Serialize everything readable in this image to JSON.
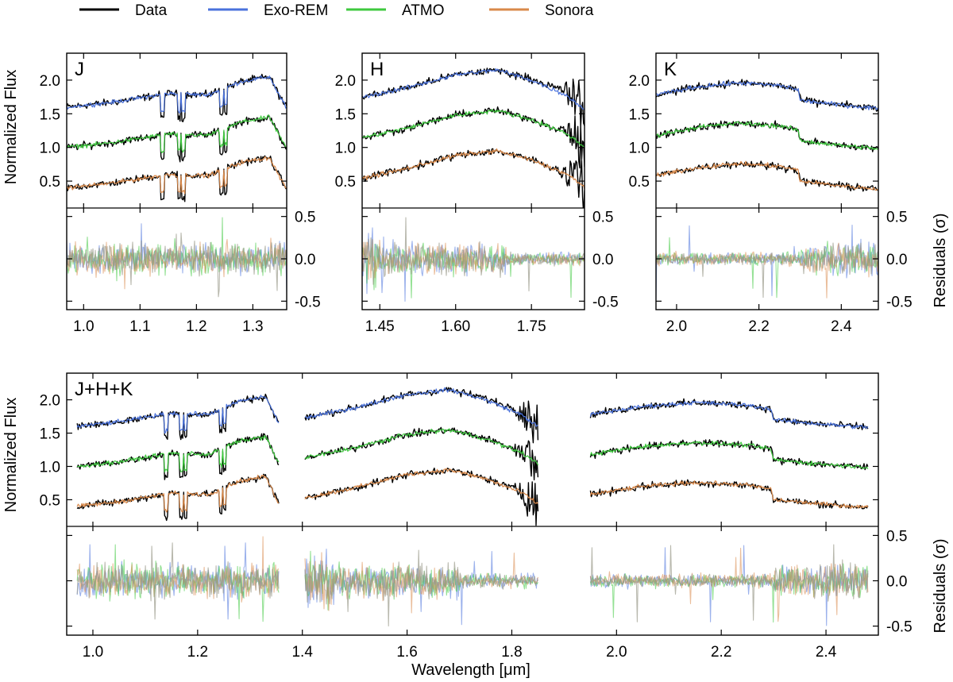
{
  "legend": [
    {
      "label": "Data",
      "color": "#000000"
    },
    {
      "label": "Exo-REM",
      "color": "#4a72dc"
    },
    {
      "label": "ATMO",
      "color": "#3ec93e"
    },
    {
      "label": "Sonora",
      "color": "#d9894a"
    }
  ],
  "axes": {
    "flux_label": "Normalized Flux",
    "residual_label": "Residuals (σ)",
    "x_label": "Wavelength [μm]"
  },
  "chart_data": [
    {
      "type": "line",
      "panel": "J",
      "xlim": [
        0.97,
        1.36
      ],
      "x_ticks": [
        "1.0",
        "1.1",
        "1.2",
        "1.3"
      ],
      "flux_ylim": [
        0.1,
        2.4
      ],
      "flux_ticks": [
        "0.5",
        "1.0",
        "1.5",
        "2.0"
      ],
      "residual_ylim": [
        -0.6,
        0.6
      ],
      "residual_ticks": [
        "-0.5",
        "0.0",
        "0.5"
      ],
      "segments": [
        [
          0.97,
          1.36
        ]
      ],
      "series": [
        {
          "name": "Data",
          "color": "#000000",
          "offset": 1.2,
          "shape": [
            [
              0.97,
              0.4
            ],
            [
              1.05,
              0.47
            ],
            [
              1.15,
              0.6
            ],
            [
              1.22,
              0.58
            ],
            [
              1.28,
              0.78
            ],
            [
              1.33,
              0.85
            ],
            [
              1.345,
              0.6
            ],
            [
              1.36,
              0.38
            ]
          ]
        },
        {
          "name": "Exo-REM",
          "color": "#4a72dc",
          "offset": 1.2
        },
        {
          "name": "Data",
          "color": "#000000",
          "offset": 0.6
        },
        {
          "name": "ATMO",
          "color": "#3ec93e",
          "offset": 0.6
        },
        {
          "name": "Data",
          "color": "#000000",
          "offset": 0.0
        },
        {
          "name": "Sonora",
          "color": "#d9894a",
          "offset": 0.0
        }
      ]
    },
    {
      "type": "line",
      "panel": "H",
      "xlim": [
        1.415,
        1.855
      ],
      "x_ticks": [
        "1.45",
        "1.60",
        "1.75"
      ],
      "flux_ylim": [
        0.1,
        2.4
      ],
      "flux_ticks": [
        "0.5",
        "1.0",
        "1.5",
        "2.0"
      ],
      "residual_ylim": [
        -0.6,
        0.6
      ],
      "residual_ticks": [
        "-0.5",
        "0.0",
        "0.5"
      ],
      "segments": [
        [
          1.415,
          1.855
        ]
      ],
      "series": [
        {
          "name": "Data",
          "color": "#000000",
          "offset": 1.2,
          "shape": [
            [
              1.415,
              0.55
            ],
            [
              1.5,
              0.68
            ],
            [
              1.6,
              0.88
            ],
            [
              1.68,
              0.95
            ],
            [
              1.75,
              0.82
            ],
            [
              1.82,
              0.62
            ],
            [
              1.855,
              0.4
            ]
          ]
        },
        {
          "name": "Exo-REM",
          "color": "#4a72dc",
          "offset": 1.2
        },
        {
          "name": "Data",
          "color": "#000000",
          "offset": 0.6
        },
        {
          "name": "ATMO",
          "color": "#3ec93e",
          "offset": 0.6
        },
        {
          "name": "Data",
          "color": "#000000",
          "offset": 0.0
        },
        {
          "name": "Sonora",
          "color": "#d9894a",
          "offset": 0.0
        }
      ]
    },
    {
      "type": "line",
      "panel": "K",
      "xlim": [
        1.95,
        2.49
      ],
      "x_ticks": [
        "2.0",
        "2.2",
        "2.4"
      ],
      "flux_ylim": [
        0.1,
        2.4
      ],
      "flux_ticks": [
        "0.5",
        "1.0",
        "1.5",
        "2.0"
      ],
      "residual_ylim": [
        -0.6,
        0.6
      ],
      "residual_ticks": [
        "-0.5",
        "0.0",
        "0.5"
      ],
      "segments": [
        [
          1.95,
          2.49
        ]
      ],
      "series": [
        {
          "name": "Data",
          "color": "#000000",
          "offset": 1.2,
          "shape": [
            [
              1.95,
              0.58
            ],
            [
              2.05,
              0.7
            ],
            [
              2.15,
              0.76
            ],
            [
              2.25,
              0.72
            ],
            [
              2.295,
              0.66
            ],
            [
              2.3,
              0.5
            ],
            [
              2.4,
              0.43
            ],
            [
              2.49,
              0.38
            ]
          ]
        },
        {
          "name": "Exo-REM",
          "color": "#4a72dc",
          "offset": 1.2
        },
        {
          "name": "Data",
          "color": "#000000",
          "offset": 0.6
        },
        {
          "name": "ATMO",
          "color": "#3ec93e",
          "offset": 0.6
        },
        {
          "name": "Data",
          "color": "#000000",
          "offset": 0.0
        },
        {
          "name": "Sonora",
          "color": "#d9894a",
          "offset": 0.0
        }
      ]
    },
    {
      "type": "line",
      "panel": "J+H+K",
      "xlim": [
        0.95,
        2.5
      ],
      "x_ticks": [
        "1.0",
        "1.2",
        "1.4",
        "1.6",
        "1.8",
        "2.0",
        "2.2",
        "2.4"
      ],
      "flux_ylim": [
        0.1,
        2.4
      ],
      "flux_ticks": [
        "0.5",
        "1.0",
        "1.5",
        "2.0"
      ],
      "residual_ylim": [
        -0.6,
        0.6
      ],
      "residual_ticks": [
        "-0.5",
        "0.0",
        "0.5"
      ],
      "segments": [
        [
          0.97,
          1.355
        ],
        [
          1.405,
          1.85
        ],
        [
          1.95,
          2.48
        ]
      ],
      "series": [
        {
          "name": "Data",
          "color": "#000000",
          "offset": 1.2
        },
        {
          "name": "Exo-REM",
          "color": "#4a72dc",
          "offset": 1.2
        },
        {
          "name": "Data",
          "color": "#000000",
          "offset": 0.6
        },
        {
          "name": "ATMO",
          "color": "#3ec93e",
          "offset": 0.6
        },
        {
          "name": "Data",
          "color": "#000000",
          "offset": 0.0
        },
        {
          "name": "Sonora",
          "color": "#d9894a",
          "offset": 0.0
        }
      ]
    }
  ]
}
